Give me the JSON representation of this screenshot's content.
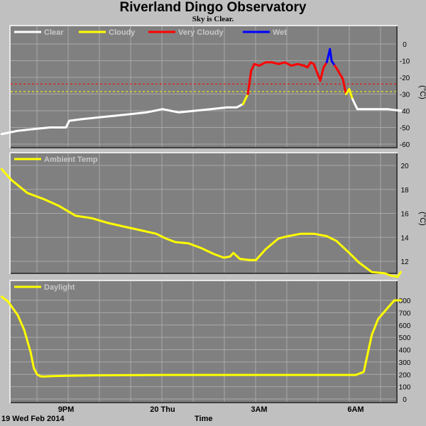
{
  "title": "Riverland Dingo Observatory",
  "subtitle": "Sky is Clear.",
  "footer": {
    "date": "19 Wed Feb 2014",
    "xlabel": "Time"
  },
  "colors": {
    "background": "#c0c0c0",
    "plot_bg": "#808080",
    "grid": "#a8a8a8",
    "clear": "#ffffff",
    "cloudy": "#ffff00",
    "very_cloudy": "#ff0000",
    "wet": "#0000ff",
    "legend_text": "#c8c8c8"
  },
  "x_ticks": [
    {
      "label": "9PM",
      "hour": 21
    },
    {
      "label": "20 Thu",
      "hour": 24
    },
    {
      "label": "3AM",
      "hour": 27
    },
    {
      "label": "6AM",
      "hour": 30
    }
  ],
  "chart_data": [
    {
      "type": "line",
      "name": "sky",
      "ylabel": "(°C)",
      "ylim": [
        -60,
        5
      ],
      "yticks": [
        0,
        -10,
        -20,
        -30,
        -40,
        -50,
        -60
      ],
      "xlim": [
        19.0,
        31.4
      ],
      "thresholds": [
        {
          "value": -24,
          "color": "#ff0000"
        },
        {
          "value": -28.5,
          "color": "#ffff00"
        }
      ],
      "legend": [
        {
          "label": "Clear",
          "color": "#ffffff"
        },
        {
          "label": "Cloudy",
          "color": "#ffff00"
        },
        {
          "label": "Very Cloudy",
          "color": "#ff0000"
        },
        {
          "label": "Wet",
          "color": "#0000ff"
        }
      ],
      "segments": [
        {
          "color": "#ffffff",
          "x": [
            19.0,
            19.5,
            20.0,
            20.5,
            21.0,
            21.1,
            21.5,
            22.0,
            22.5,
            23.0,
            23.5,
            24.0,
            24.5,
            25.0,
            25.5,
            26.0,
            26.3,
            26.5
          ],
          "y": [
            -54,
            -52,
            -51,
            -50,
            -50,
            -46,
            -45,
            -44,
            -43,
            -42,
            -41,
            -39,
            -41,
            -40,
            -39,
            -38,
            -38,
            -36
          ]
        },
        {
          "color": "#ffff00",
          "x": [
            26.5,
            26.65
          ],
          "y": [
            -36,
            -30
          ]
        },
        {
          "color": "#ff0000",
          "x": [
            26.65,
            26.75,
            26.85,
            27.0,
            27.2,
            27.4,
            27.6,
            27.8,
            28.0,
            28.2,
            28.4,
            28.5,
            28.6,
            28.7,
            28.8,
            28.9,
            29.0,
            29.1
          ],
          "y": [
            -30,
            -16,
            -12,
            -13,
            -11,
            -11,
            -12,
            -11,
            -13,
            -12,
            -13,
            -14,
            -11,
            -12,
            -17,
            -22,
            -14,
            -11
          ]
        },
        {
          "color": "#0000ff",
          "x": [
            29.1,
            29.2,
            29.25,
            29.35
          ],
          "y": [
            -11,
            -3,
            -10,
            -13
          ]
        },
        {
          "color": "#ff0000",
          "x": [
            29.35,
            29.45,
            29.6,
            29.7
          ],
          "y": [
            -13,
            -16,
            -21,
            -30
          ]
        },
        {
          "color": "#ffff00",
          "x": [
            29.7,
            29.8,
            29.9
          ],
          "y": [
            -30,
            -27,
            -33
          ]
        },
        {
          "color": "#ffffff",
          "x": [
            29.9,
            30.05,
            30.5,
            31.0,
            31.4
          ],
          "y": [
            -33,
            -39,
            -39,
            -39,
            -40
          ]
        }
      ]
    },
    {
      "type": "line",
      "name": "Ambient Temp",
      "ylabel": "(°C)",
      "ylim": [
        10,
        21
      ],
      "yticks": [
        20,
        18,
        16,
        14,
        12
      ],
      "xlim": [
        19.0,
        31.4
      ],
      "legend": [
        {
          "label": "Ambient Temp",
          "color": "#ffff00"
        }
      ],
      "series": [
        {
          "name": "Ambient Temp",
          "color": "#ffff00",
          "x": [
            19.0,
            19.3,
            19.8,
            20.3,
            20.8,
            21.3,
            21.8,
            22.3,
            22.8,
            23.3,
            23.8,
            24.1,
            24.4,
            24.8,
            25.2,
            25.6,
            25.9,
            26.1,
            26.2,
            26.4,
            26.7,
            26.9,
            27.2,
            27.6,
            27.9,
            28.3,
            28.7,
            29.1,
            29.4,
            29.8,
            30.1,
            30.5,
            30.9,
            31.1,
            31.3,
            31.4
          ],
          "y": [
            19.7,
            18.8,
            17.7,
            17.2,
            16.6,
            15.8,
            15.6,
            15.2,
            14.9,
            14.6,
            14.3,
            13.9,
            13.6,
            13.5,
            13.1,
            12.6,
            12.3,
            12.4,
            12.7,
            12.2,
            12.1,
            12.1,
            13.0,
            13.9,
            14.1,
            14.3,
            14.3,
            14.1,
            13.7,
            12.7,
            11.9,
            11.1,
            11.0,
            10.8,
            10.7,
            11.1
          ]
        }
      ]
    },
    {
      "type": "line",
      "name": "Daylight",
      "ylim": [
        0,
        850
      ],
      "yticks": [
        800,
        700,
        600,
        500,
        400,
        300,
        200,
        100,
        0
      ],
      "xlim": [
        19.0,
        31.4
      ],
      "legend": [
        {
          "label": "Daylight",
          "color": "#ffff00"
        }
      ],
      "series": [
        {
          "name": "Daylight",
          "color": "#ffff00",
          "x": [
            19.0,
            19.2,
            19.5,
            19.7,
            19.9,
            20.0,
            20.1,
            20.2,
            20.3,
            20.5,
            21.0,
            22.0,
            24.0,
            26.0,
            28.0,
            30.0,
            30.25,
            30.4,
            30.5,
            30.7,
            31.0,
            31.2,
            31.4
          ],
          "y": [
            830,
            790,
            680,
            560,
            380,
            250,
            200,
            185,
            182,
            185,
            188,
            192,
            195,
            195,
            195,
            195,
            220,
            400,
            520,
            650,
            740,
            800,
            800
          ]
        }
      ]
    }
  ]
}
